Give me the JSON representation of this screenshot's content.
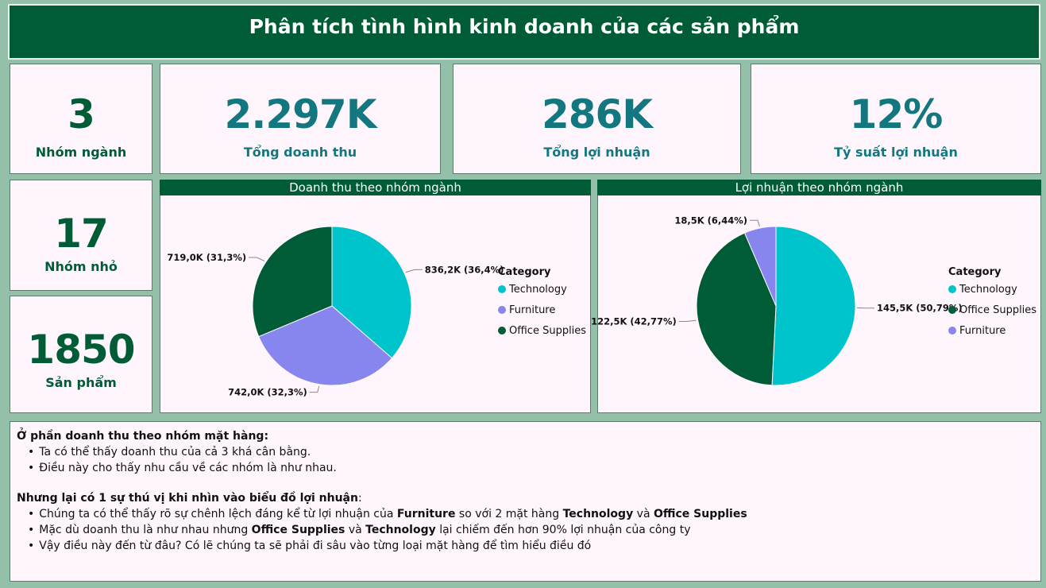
{
  "header": {
    "title": "Phân tích tình hình kinh doanh của các sản phẩm"
  },
  "kpis": {
    "categories": {
      "value": "3",
      "label": "Nhóm ngành"
    },
    "revenue": {
      "value": "2.297K",
      "label": "Tổng doanh thu"
    },
    "profit": {
      "value": "286K",
      "label": "Tổng lợi nhuận"
    },
    "margin": {
      "value": "12%",
      "label": "Tỷ suất lợi nhuận"
    },
    "subcategories": {
      "value": "17",
      "label": "Nhóm nhỏ"
    },
    "products": {
      "value": "1850",
      "label": "Sản phẩm"
    }
  },
  "colors": {
    "Technology": "#00c4cc",
    "Furniture": "#8686ee",
    "Office Supplies": "#005c36"
  },
  "chart_data": [
    {
      "type": "pie",
      "title": "Doanh thu theo nhóm ngành",
      "legend_title": "Category",
      "legend_placement": "right",
      "series": [
        {
          "name": "Technology",
          "value": 836.2,
          "label": "836,2K (36,4%)"
        },
        {
          "name": "Furniture",
          "value": 742.0,
          "label": "742,0K (32,3%)"
        },
        {
          "name": "Office Supplies",
          "value": 719.0,
          "label": "719,0K (31,3%)"
        }
      ]
    },
    {
      "type": "pie",
      "title": "Lợi nhuận theo nhóm ngành",
      "legend_title": "Category",
      "legend_placement": "right",
      "series": [
        {
          "name": "Technology",
          "value": 145.5,
          "label": "145,5K (50,79%)"
        },
        {
          "name": "Office Supplies",
          "value": 122.5,
          "label": "122,5K (42,77%)"
        },
        {
          "name": "Furniture",
          "value": 18.5,
          "label": "18,5K (6,44%)"
        }
      ]
    }
  ],
  "notes": {
    "section1_title": "Ở phần doanh thu theo nhóm mặt hàng:",
    "section1_items": [
      "Ta có thể thấy doanh thu của cả 3 khá cân bằng.",
      "Điều này cho thấy nhu cầu về các nhóm là như nhau."
    ],
    "section2_title": "Nhưng lại có 1 sự thú vị khi nhìn vào biểu đồ lợi nhuận",
    "section2_colon": ":",
    "s2_item1_a": "Chúng ta có thể thấy rõ sự chênh lệch đáng kể từ lợi nhuận của ",
    "s2_item1_b": "Furniture",
    "s2_item1_c": " so với 2 mặt hàng ",
    "s2_item1_d": "Technology",
    "s2_item1_e": " và ",
    "s2_item1_f": "Office Supplies",
    "s2_item2_a": "Mặc dù doanh thu là như nhau nhưng ",
    "s2_item2_b": "Office Supplies",
    "s2_item2_c": " và ",
    "s2_item2_d": "Technology",
    "s2_item2_e": " lại chiếm đến hơn 90% lợi nhuận của công ty",
    "s2_item3": "Vậy điều này đến từ đâu? Có lẽ chúng ta sẽ phải đi sâu vào từng loại mặt hàng để tìm hiểu điều đó"
  }
}
